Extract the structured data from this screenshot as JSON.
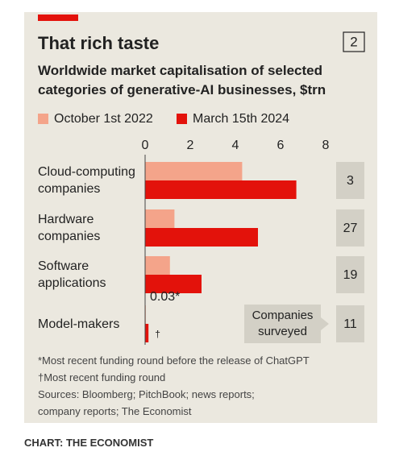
{
  "chart_data": {
    "type": "bar",
    "orientation": "horizontal",
    "title": "That rich taste",
    "chart_number": "2",
    "subtitle": "Worldwide market capitalisation of selected categories of generative-AI businesses, $trn",
    "categories": [
      "Cloud-computing companies",
      "Hardware companies",
      "Software applications",
      "Model-makers"
    ],
    "series": [
      {
        "name": "October 1st 2022",
        "color": "#f4a48a",
        "values": [
          4.3,
          1.3,
          1.1,
          0.03
        ],
        "value_labels": [
          null,
          null,
          null,
          "0.03*"
        ]
      },
      {
        "name": "March 15th 2024",
        "color": "#e3120b",
        "values": [
          6.7,
          5.0,
          2.5,
          0.15
        ],
        "value_labels": [
          null,
          null,
          null,
          "†"
        ]
      }
    ],
    "xlim": [
      0,
      8
    ],
    "xticks": [
      0,
      2,
      4,
      6,
      8
    ],
    "grid": false,
    "companies_surveyed_label": "Companies surveyed",
    "companies_surveyed": [
      3,
      27,
      19,
      11
    ],
    "footnotes": [
      "*Most recent funding round before the release of ChatGPT",
      "†Most recent funding round"
    ],
    "source": "Sources: Bloomberg; PitchBook; news reports; company reports; The Economist",
    "credit": "CHART: THE ECONOMIST"
  }
}
